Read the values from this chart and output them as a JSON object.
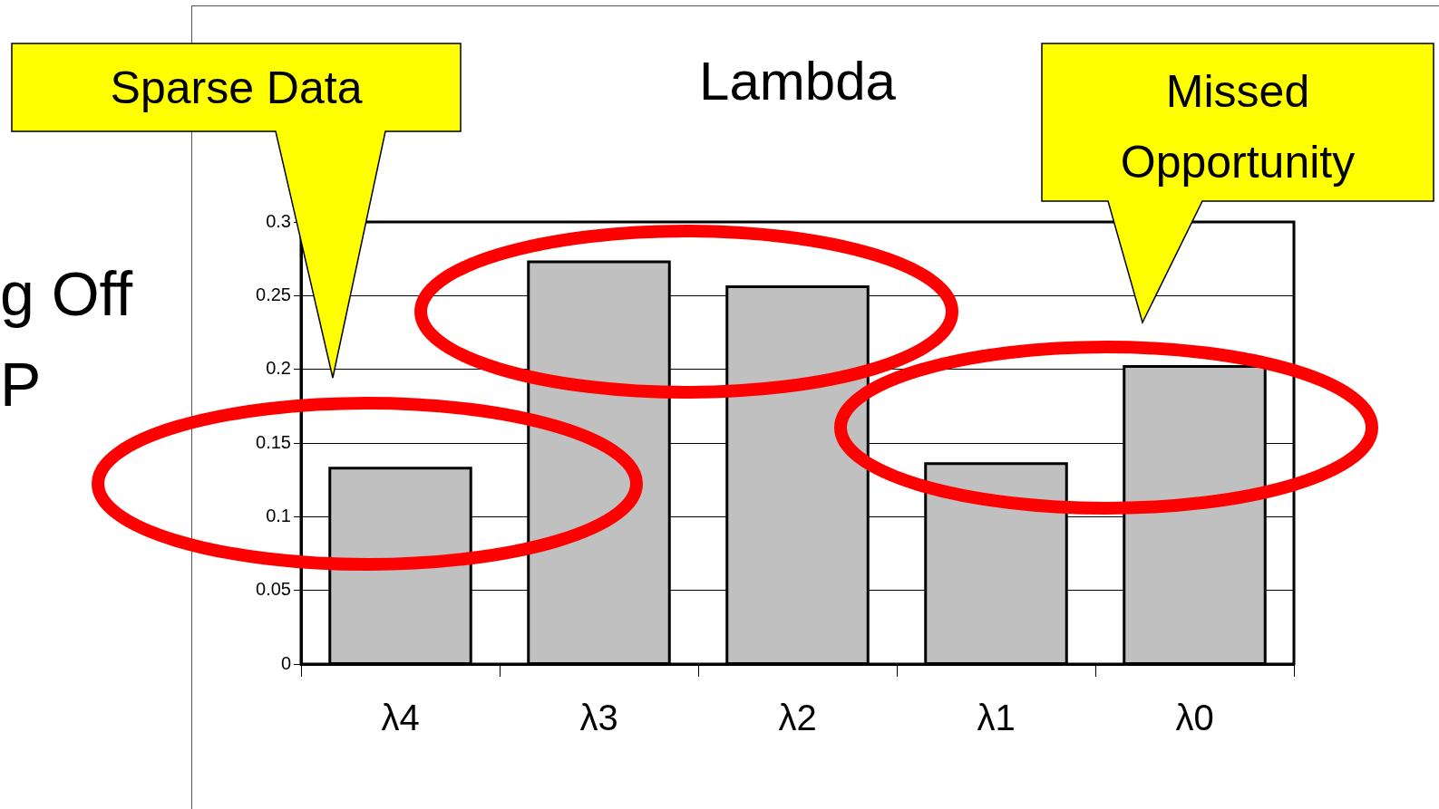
{
  "chart_data": {
    "type": "bar",
    "title": "Lambda",
    "categories": [
      "λ4",
      "λ3",
      "λ2",
      "λ1",
      "λ0"
    ],
    "values": [
      0.133,
      0.273,
      0.256,
      0.136,
      0.202
    ],
    "color": "#c0c0c0",
    "ylim": [
      0,
      0.3
    ],
    "yticks": [
      0,
      0.05,
      0.1,
      0.15,
      0.2,
      0.25,
      0.3
    ],
    "grid": "y",
    "legend": false,
    "annotations": [
      "Sparse Data",
      "Missed Opportunity",
      "g Off",
      "P"
    ]
  }
}
